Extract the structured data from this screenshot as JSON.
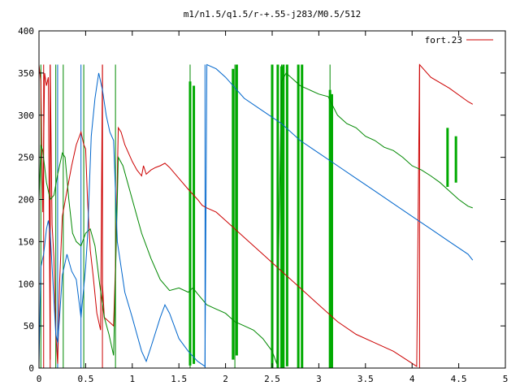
{
  "chart_data": {
    "type": "line",
    "title": "m1/n1.5/q1.5/r-+.55-j283/M0.5/512",
    "xlabel": "",
    "ylabel": "",
    "xlim": [
      0,
      5
    ],
    "ylim": [
      0,
      400
    ],
    "x_ticks": [
      "0",
      "0.5",
      "1",
      "1.5",
      "2",
      "2.5",
      "3",
      "3.5",
      "4",
      "4.5",
      "5"
    ],
    "y_ticks": [
      "0",
      "50",
      "100",
      "150",
      "200",
      "250",
      "300",
      "350",
      "400"
    ],
    "grid": false,
    "legend_position": "top-right",
    "legend": [
      {
        "label": "fort.23",
        "color": "#cc0000"
      }
    ],
    "series": [
      {
        "name": "fort.23",
        "color": "#cc0000",
        "points": [
          [
            0.0,
            360
          ],
          [
            0.02,
            340
          ],
          [
            0.04,
            185
          ],
          [
            0.06,
            350
          ],
          [
            0.08,
            335
          ],
          [
            0.1,
            345
          ],
          [
            0.12,
            10
          ],
          [
            0.12,
            360
          ],
          [
            0.14,
            170
          ],
          [
            0.16,
            130
          ],
          [
            0.18,
            40
          ],
          [
            0.2,
            5
          ],
          [
            0.22,
            100
          ],
          [
            0.25,
            180
          ],
          [
            0.3,
            210
          ],
          [
            0.35,
            240
          ],
          [
            0.4,
            265
          ],
          [
            0.45,
            280
          ],
          [
            0.48,
            265
          ],
          [
            0.5,
            260
          ],
          [
            0.52,
            200
          ],
          [
            0.55,
            140
          ],
          [
            0.58,
            110
          ],
          [
            0.62,
            65
          ],
          [
            0.66,
            45
          ],
          [
            0.68,
            360
          ],
          [
            0.68,
            100
          ],
          [
            0.7,
            60
          ],
          [
            0.75,
            55
          ],
          [
            0.8,
            50
          ],
          [
            0.82,
            120
          ],
          [
            0.85,
            285
          ],
          [
            0.88,
            280
          ],
          [
            0.92,
            265
          ],
          [
            1.0,
            245
          ],
          [
            1.05,
            235
          ],
          [
            1.1,
            228
          ],
          [
            1.12,
            240
          ],
          [
            1.15,
            230
          ],
          [
            1.2,
            235
          ],
          [
            1.25,
            238
          ],
          [
            1.3,
            240
          ],
          [
            1.35,
            243
          ],
          [
            1.4,
            238
          ],
          [
            1.5,
            225
          ],
          [
            1.6,
            212
          ],
          [
            1.7,
            200
          ],
          [
            1.75,
            193
          ],
          [
            1.8,
            190
          ],
          [
            1.9,
            185
          ],
          [
            2.0,
            175
          ],
          [
            2.2,
            155
          ],
          [
            2.4,
            135
          ],
          [
            2.6,
            115
          ],
          [
            2.8,
            95
          ],
          [
            3.0,
            75
          ],
          [
            3.2,
            55
          ],
          [
            3.4,
            40
          ],
          [
            3.6,
            30
          ],
          [
            3.8,
            20
          ],
          [
            4.05,
            2
          ],
          [
            4.08,
            360
          ],
          [
            4.2,
            345
          ],
          [
            4.4,
            332
          ],
          [
            4.6,
            316
          ],
          [
            4.65,
            313
          ]
        ]
      },
      {
        "name": "",
        "color": "#008800",
        "points": [
          [
            0.0,
            200
          ],
          [
            0.02,
            265
          ],
          [
            0.04,
            258
          ],
          [
            0.08,
            220
          ],
          [
            0.12,
            200
          ],
          [
            0.16,
            205
          ],
          [
            0.2,
            230
          ],
          [
            0.25,
            255
          ],
          [
            0.28,
            250
          ],
          [
            0.32,
            200
          ],
          [
            0.36,
            160
          ],
          [
            0.4,
            150
          ],
          [
            0.45,
            145
          ],
          [
            0.5,
            160
          ],
          [
            0.55,
            165
          ],
          [
            0.6,
            145
          ],
          [
            0.65,
            100
          ],
          [
            0.7,
            60
          ],
          [
            0.75,
            40
          ],
          [
            0.8,
            15
          ],
          [
            0.85,
            250
          ],
          [
            0.9,
            240
          ],
          [
            1.0,
            200
          ],
          [
            1.1,
            160
          ],
          [
            1.2,
            130
          ],
          [
            1.3,
            105
          ],
          [
            1.4,
            92
          ],
          [
            1.5,
            95
          ],
          [
            1.6,
            90
          ],
          [
            1.65,
            95
          ],
          [
            1.7,
            88
          ],
          [
            1.8,
            75
          ],
          [
            1.9,
            70
          ],
          [
            2.0,
            65
          ],
          [
            2.05,
            60
          ],
          [
            2.1,
            55
          ],
          [
            2.2,
            50
          ],
          [
            2.3,
            45
          ],
          [
            2.4,
            35
          ],
          [
            2.5,
            20
          ],
          [
            2.55,
            5
          ],
          [
            2.6,
            340
          ],
          [
            2.65,
            350
          ],
          [
            2.7,
            345
          ],
          [
            2.8,
            335
          ],
          [
            2.9,
            330
          ],
          [
            3.0,
            325
          ],
          [
            3.1,
            322
          ],
          [
            3.2,
            300
          ],
          [
            3.3,
            290
          ],
          [
            3.4,
            285
          ],
          [
            3.5,
            275
          ],
          [
            3.6,
            270
          ],
          [
            3.7,
            262
          ],
          [
            3.8,
            258
          ],
          [
            3.9,
            250
          ],
          [
            4.0,
            240
          ],
          [
            4.1,
            235
          ],
          [
            4.2,
            228
          ],
          [
            4.3,
            220
          ],
          [
            4.4,
            210
          ],
          [
            4.5,
            200
          ],
          [
            4.6,
            192
          ],
          [
            4.65,
            190
          ]
        ]
      },
      {
        "name": "",
        "color": "#0066cc",
        "points": [
          [
            0.0,
            5
          ],
          [
            0.02,
            120
          ],
          [
            0.05,
            135
          ],
          [
            0.08,
            165
          ],
          [
            0.1,
            175
          ],
          [
            0.12,
            160
          ],
          [
            0.14,
            120
          ],
          [
            0.16,
            80
          ],
          [
            0.18,
            40
          ],
          [
            0.2,
            30
          ],
          [
            0.22,
            60
          ],
          [
            0.25,
            110
          ],
          [
            0.3,
            135
          ],
          [
            0.35,
            115
          ],
          [
            0.4,
            105
          ],
          [
            0.45,
            60
          ],
          [
            0.5,
            120
          ],
          [
            0.52,
            155
          ],
          [
            0.56,
            275
          ],
          [
            0.6,
            320
          ],
          [
            0.64,
            350
          ],
          [
            0.68,
            330
          ],
          [
            0.72,
            300
          ],
          [
            0.76,
            280
          ],
          [
            0.8,
            270
          ],
          [
            0.84,
            150
          ],
          [
            0.88,
            120
          ],
          [
            0.92,
            90
          ],
          [
            1.0,
            60
          ],
          [
            1.05,
            40
          ],
          [
            1.1,
            20
          ],
          [
            1.15,
            8
          ],
          [
            1.2,
            25
          ],
          [
            1.3,
            60
          ],
          [
            1.35,
            75
          ],
          [
            1.4,
            65
          ],
          [
            1.5,
            35
          ],
          [
            1.6,
            20
          ],
          [
            1.7,
            8
          ],
          [
            1.78,
            2
          ],
          [
            1.8,
            360
          ],
          [
            1.9,
            355
          ],
          [
            2.0,
            345
          ],
          [
            2.2,
            320
          ],
          [
            2.4,
            305
          ],
          [
            2.6,
            290
          ],
          [
            2.8,
            270
          ],
          [
            3.0,
            255
          ],
          [
            3.2,
            240
          ],
          [
            3.4,
            225
          ],
          [
            3.6,
            210
          ],
          [
            3.8,
            195
          ],
          [
            4.0,
            180
          ],
          [
            4.2,
            165
          ],
          [
            4.4,
            150
          ],
          [
            4.6,
            135
          ],
          [
            4.65,
            128
          ]
        ]
      }
    ],
    "green_spikes": [
      [
        1.62,
        3,
        340
      ],
      [
        1.66,
        5,
        335
      ],
      [
        2.08,
        10,
        355
      ],
      [
        2.12,
        15,
        360
      ],
      [
        2.5,
        0,
        360
      ],
      [
        2.56,
        0,
        360
      ],
      [
        2.6,
        0,
        358
      ],
      [
        2.62,
        0,
        360
      ],
      [
        2.66,
        2,
        360
      ],
      [
        2.78,
        0,
        360
      ],
      [
        2.82,
        0,
        360
      ],
      [
        3.12,
        0,
        330
      ],
      [
        3.14,
        0,
        325
      ],
      [
        4.38,
        215,
        285
      ],
      [
        4.47,
        220,
        275
      ]
    ],
    "vertical_lines": [
      {
        "x": 0.02,
        "color": "#008800"
      },
      {
        "x": 0.05,
        "color": "#cc0000"
      },
      {
        "x": 0.12,
        "color": "#cc0000"
      },
      {
        "x": 0.18,
        "color": "#008800"
      },
      {
        "x": 0.2,
        "color": "#0066cc"
      },
      {
        "x": 0.26,
        "color": "#008800"
      },
      {
        "x": 0.45,
        "color": "#0066cc"
      },
      {
        "x": 0.48,
        "color": "#008800"
      },
      {
        "x": 0.68,
        "color": "#cc0000"
      },
      {
        "x": 0.82,
        "color": "#008800"
      },
      {
        "x": 1.62,
        "color": "#008800"
      },
      {
        "x": 1.78,
        "color": "#0066cc"
      },
      {
        "x": 2.1,
        "color": "#008800"
      },
      {
        "x": 2.6,
        "color": "#008800"
      },
      {
        "x": 3.12,
        "color": "#008800"
      },
      {
        "x": 4.08,
        "color": "#cc0000"
      }
    ]
  }
}
